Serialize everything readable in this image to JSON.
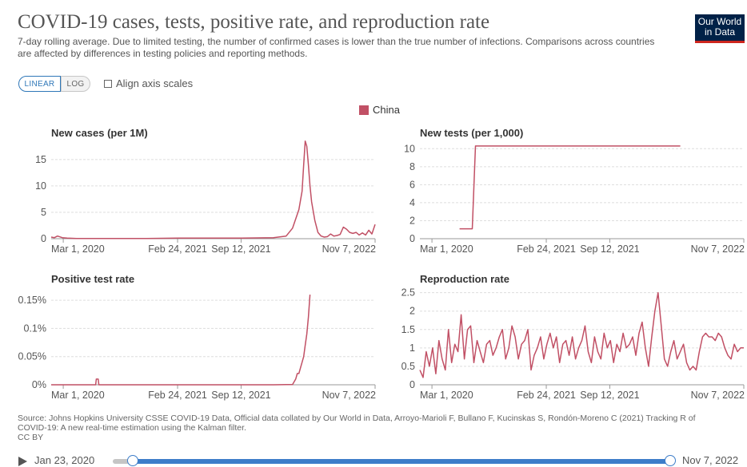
{
  "header": {
    "title": "COVID-19 cases, tests, positive rate, and reproduction rate",
    "subtitle": "7-day rolling average. Due to limited testing, the number of confirmed cases is lower than the true number of infections. Comparisons across countries are affected by differences in testing policies and reporting methods.",
    "logo_line1": "Our World",
    "logo_line2": "in Data"
  },
  "controls": {
    "linear_label": "LINEAR",
    "log_label": "LOG",
    "align_label": "Align axis scales"
  },
  "legend": {
    "label": "China",
    "color": "#c15065"
  },
  "chart_data": [
    {
      "type": "line",
      "title": "New cases (per 1M)",
      "x_range": [
        0,
        1020
      ],
      "ylim": [
        0,
        18
      ],
      "y_ticks": [
        0,
        5,
        10,
        15
      ],
      "y_tick_labels": [
        "0",
        "5",
        "10",
        "15"
      ],
      "x_ticks": [
        38,
        398,
        598,
        1020
      ],
      "x_tick_labels": [
        "Mar 1, 2020",
        "Feb 24, 2021",
        "Sep 12, 2021",
        "Nov 7, 2022"
      ],
      "series": [
        {
          "name": "China",
          "color": "#c15065",
          "x": [
            0,
            10,
            20,
            35,
            50,
            80,
            120,
            200,
            300,
            400,
            500,
            600,
            700,
            740,
            760,
            780,
            790,
            795,
            800,
            805,
            810,
            815,
            820,
            830,
            840,
            850,
            860,
            870,
            880,
            890,
            900,
            910,
            920,
            930,
            940,
            950,
            960,
            970,
            980,
            990,
            1000,
            1010,
            1020
          ],
          "values": [
            0.3,
            0.2,
            0.5,
            0.2,
            0.1,
            0.05,
            0.05,
            0.05,
            0.05,
            0.1,
            0.1,
            0.1,
            0.2,
            0.5,
            2.0,
            5.5,
            9.0,
            14.0,
            18.5,
            17.5,
            14.0,
            10.0,
            7.0,
            3.5,
            1.2,
            0.5,
            0.3,
            0.4,
            0.9,
            0.5,
            0.6,
            0.8,
            2.2,
            1.8,
            1.2,
            1.0,
            1.2,
            0.7,
            1.1,
            0.7,
            1.6,
            0.9,
            2.7
          ]
        }
      ]
    },
    {
      "type": "line",
      "title": "New tests (per 1,000)",
      "x_range": [
        0,
        1020
      ],
      "ylim": [
        0,
        11
      ],
      "y_ticks": [
        0,
        2,
        4,
        6,
        8,
        10
      ],
      "y_tick_labels": [
        "0",
        "2",
        "4",
        "6",
        "8",
        "10"
      ],
      "x_ticks": [
        38,
        398,
        598,
        1020
      ],
      "x_tick_labels": [
        "Mar 1, 2020",
        "Feb 24, 2021",
        "Sep 12, 2021",
        "Nov 7, 2022"
      ],
      "series": [
        {
          "name": "China",
          "color": "#c15065",
          "x": [
            125,
            165,
            175,
            820
          ],
          "values": [
            1.1,
            1.1,
            10.3,
            10.3
          ]
        }
      ]
    },
    {
      "type": "line",
      "title": "Positive test rate",
      "x_range": [
        0,
        1020
      ],
      "ylim": [
        0,
        0.17
      ],
      "y_ticks": [
        0,
        0.05,
        0.1,
        0.15
      ],
      "y_tick_labels": [
        "0%",
        "0.05%",
        "0.1%",
        "0.15%"
      ],
      "x_ticks": [
        38,
        398,
        598,
        1020
      ],
      "x_tick_labels": [
        "Mar 1, 2020",
        "Feb 24, 2021",
        "Sep 12, 2021",
        "Nov 7, 2022"
      ],
      "series": [
        {
          "name": "China",
          "color": "#c15065",
          "x": [
            0,
            100,
            140,
            142,
            148,
            150,
            300,
            500,
            700,
            760,
            770,
            775,
            780,
            785,
            790,
            795,
            800,
            805,
            810,
            815
          ],
          "values": [
            0,
            0,
            0,
            0.01,
            0.01,
            0,
            0,
            0,
            0,
            0.0005,
            0.01,
            0.02,
            0.02,
            0.03,
            0.04,
            0.05,
            0.07,
            0.09,
            0.12,
            0.16
          ]
        }
      ]
    },
    {
      "type": "line",
      "title": "Reproduction rate",
      "x_range": [
        0,
        1020
      ],
      "ylim": [
        0,
        2.6
      ],
      "y_ticks": [
        0,
        0.5,
        1,
        1.5,
        2,
        2.5
      ],
      "y_tick_labels": [
        "0",
        "0.5",
        "1",
        "1.5",
        "2",
        "2.5"
      ],
      "x_ticks": [
        38,
        398,
        598,
        1020
      ],
      "x_tick_labels": [
        "Mar 1, 2020",
        "Feb 24, 2021",
        "Sep 12, 2021",
        "Nov 7, 2022"
      ],
      "series": [
        {
          "name": "China",
          "color": "#c15065",
          "x": [
            0,
            10,
            20,
            30,
            40,
            50,
            60,
            70,
            80,
            90,
            100,
            110,
            120,
            130,
            140,
            150,
            160,
            170,
            180,
            190,
            200,
            210,
            220,
            230,
            240,
            250,
            260,
            270,
            280,
            290,
            300,
            310,
            320,
            330,
            340,
            350,
            360,
            370,
            380,
            390,
            400,
            410,
            420,
            430,
            440,
            450,
            460,
            470,
            480,
            490,
            500,
            510,
            520,
            530,
            540,
            550,
            560,
            570,
            580,
            590,
            600,
            610,
            620,
            630,
            640,
            650,
            660,
            670,
            680,
            690,
            700,
            710,
            720,
            730,
            740,
            750,
            760,
            770,
            780,
            790,
            800,
            810,
            820,
            830,
            840,
            850,
            860,
            870,
            880,
            890,
            900,
            910,
            920,
            930,
            940,
            950,
            960,
            970,
            980,
            990,
            1000,
            1010,
            1020
          ],
          "values": [
            0.4,
            0.2,
            0.9,
            0.5,
            1.0,
            0.3,
            1.2,
            0.7,
            0.4,
            1.5,
            0.6,
            1.1,
            0.9,
            1.9,
            0.7,
            1.5,
            1.6,
            0.6,
            1.2,
            0.9,
            0.6,
            1.1,
            1.2,
            0.8,
            1.0,
            1.3,
            1.5,
            0.7,
            1.0,
            1.6,
            1.3,
            0.7,
            1.1,
            1.2,
            1.5,
            0.4,
            0.8,
            1.0,
            1.3,
            0.7,
            1.1,
            1.4,
            1.0,
            1.3,
            0.6,
            1.1,
            1.2,
            0.8,
            1.3,
            0.7,
            1.0,
            1.2,
            1.6,
            0.9,
            0.6,
            1.3,
            0.9,
            0.7,
            1.4,
            1.0,
            1.2,
            0.6,
            1.1,
            0.9,
            1.4,
            1.0,
            1.1,
            1.3,
            0.8,
            1.4,
            1.7,
            1.0,
            0.5,
            1.3,
            2.0,
            2.5,
            1.6,
            0.7,
            0.5,
            0.9,
            1.2,
            0.7,
            0.9,
            1.1,
            0.6,
            0.4,
            0.5,
            0.4,
            0.9,
            1.3,
            1.4,
            1.3,
            1.3,
            1.2,
            1.4,
            1.3,
            1.0,
            0.8,
            0.7,
            1.1,
            0.9,
            1.0,
            1.0
          ]
        }
      ]
    }
  ],
  "source": "Source: Johns Hopkins University CSSE COVID-19 Data, Official data collated by Our World in Data, Arroyo-Marioli F, Bullano F, Kucinskas S, Rondón-Moreno C (2021) Tracking R of COVID-19: A new real-time estimation using the Kalman filter.",
  "license": "CC BY",
  "timeline": {
    "start_label": "Jan 23, 2020",
    "end_label": "Nov 7, 2022"
  }
}
